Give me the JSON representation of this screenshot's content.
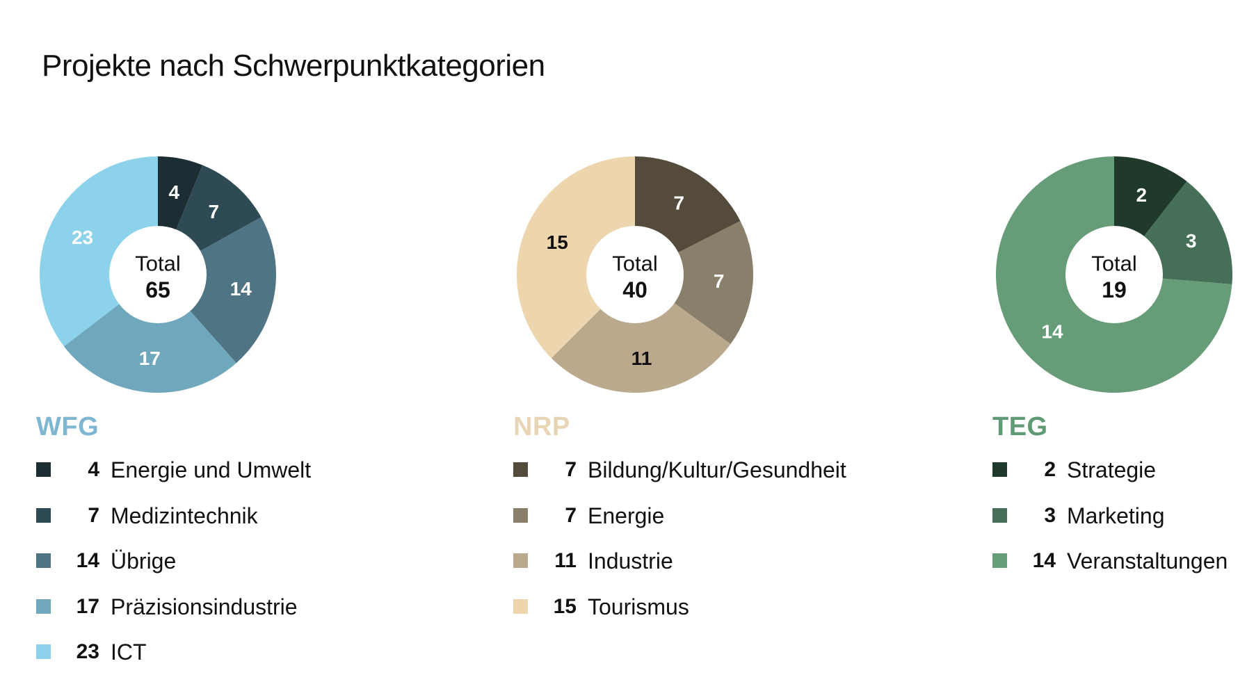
{
  "title": "Projekte nach Schwerpunktkategorien",
  "total_label": "Total",
  "chart_data": [
    {
      "type": "pie",
      "title": "WFG",
      "title_color": "#7FB6D1",
      "total": 65,
      "categories": [
        "Energie und Umwelt",
        "Medizintechnik",
        "Übrige",
        "Präzisionsindustrie",
        "ICT"
      ],
      "values": [
        4,
        7,
        14,
        17,
        23
      ],
      "colors": [
        "#1C2D33",
        "#2E4A55",
        "#4F7585",
        "#6FA7BC",
        "#8CD2EB"
      ],
      "label_colors": [
        "#FFFFFF",
        "#FFFFFF",
        "#FFFFFF",
        "#FFFFFF",
        "#FFFFFF"
      ],
      "start": "top",
      "direction": "clockwise",
      "hole": "donut"
    },
    {
      "type": "pie",
      "title": "NRP",
      "title_color": "#E8D5B5",
      "total": 40,
      "categories": [
        "Bildung/Kultur/Gesundheit",
        "Energie",
        "Industrie",
        "Tourismus"
      ],
      "values": [
        7,
        7,
        11,
        15
      ],
      "colors": [
        "#554B3C",
        "#8A7F6A",
        "#BAA98C",
        "#EDD5AE"
      ],
      "label_colors": [
        "#FFFFFF",
        "#FFFFFF",
        "#111111",
        "#111111"
      ],
      "start": "top",
      "direction": "clockwise",
      "hole": "donut"
    },
    {
      "type": "pie",
      "title": "TEG",
      "title_color": "#5F9A75",
      "total": 19,
      "categories": [
        "Strategie",
        "Marketing",
        "Veranstaltungen"
      ],
      "values": [
        2,
        3,
        14
      ],
      "colors": [
        "#1F3A2B",
        "#456F56",
        "#679C78"
      ],
      "label_colors": [
        "#FFFFFF",
        "#FFFFFF",
        "#FFFFFF"
      ],
      "start": "top",
      "direction": "clockwise",
      "hole": "donut"
    }
  ]
}
